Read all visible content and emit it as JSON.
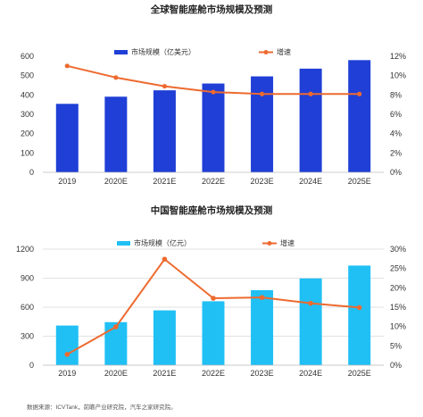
{
  "source": "数据来源：ICVTank，前瞻产业研究院，汽车之家研究院。",
  "chart_data": [
    {
      "type": "bar",
      "title": "全球智能座舱市场规模及预测",
      "categories": [
        "2019",
        "2020E",
        "2021E",
        "2022E",
        "2023E",
        "2024E",
        "2025E"
      ],
      "series": [
        {
          "name": "市场规模（亿美元）",
          "type": "bar",
          "axis": "left",
          "color": "#1f3fd6",
          "values": [
            354,
            391,
            424,
            459,
            496,
            536,
            580
          ]
        },
        {
          "name": "增速",
          "type": "line",
          "axis": "right",
          "color": "#ed6a2f",
          "values": [
            11.0,
            9.8,
            8.9,
            8.3,
            8.1,
            8.1,
            8.1
          ]
        }
      ],
      "ylim_left": [
        0,
        600
      ],
      "yticks_left": [
        "0",
        "100",
        "200",
        "300",
        "400",
        "500",
        "600"
      ],
      "ylim_right": [
        0,
        12
      ],
      "yticks_right": [
        "0%",
        "2%",
        "4%",
        "6%",
        "8%",
        "10%",
        "12%"
      ],
      "grid": false,
      "legend": "top"
    },
    {
      "type": "bar",
      "title": "中国智能座舱市场规模及预测",
      "categories": [
        "2019",
        "2020E",
        "2021E",
        "2022E",
        "2023E",
        "2024E",
        "2025E"
      ],
      "series": [
        {
          "name": "市场规模（亿元）",
          "type": "bar",
          "axis": "left",
          "color": "#20c0f5",
          "values": [
            410,
            445,
            567,
            661,
            776,
            897,
            1030
          ]
        },
        {
          "name": "增速",
          "type": "line",
          "axis": "right",
          "color": "#ed6a2f",
          "values": [
            2.8,
            9.9,
            27.4,
            17.3,
            17.5,
            16.0,
            14.9
          ]
        }
      ],
      "ylim_left": [
        0,
        1200
      ],
      "yticks_left": [
        "0",
        "300",
        "600",
        "900",
        "1200"
      ],
      "ylim_right": [
        0,
        30
      ],
      "yticks_right": [
        "0%",
        "5%",
        "10%",
        "15%",
        "20%",
        "25%",
        "30%"
      ],
      "grid": true,
      "legend": "top"
    }
  ]
}
